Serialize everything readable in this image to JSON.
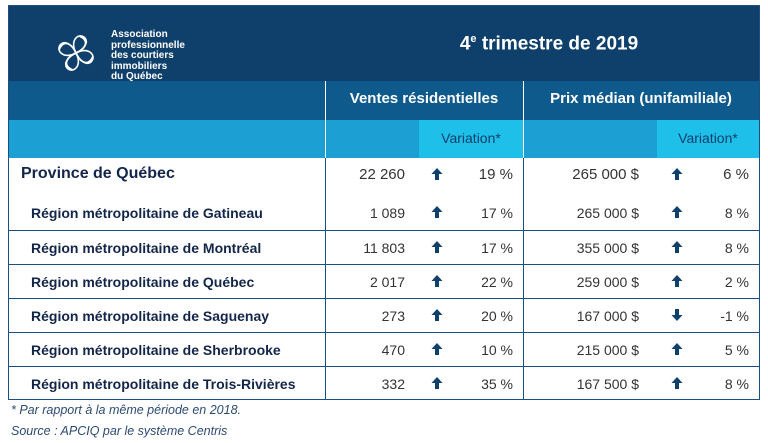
{
  "header": {
    "org_lines": [
      "Association",
      "professionnelle",
      "des courtiers",
      "immobiliers",
      "du Québec"
    ],
    "title_prefix": "4",
    "title_sup": "e",
    "title_rest": " trimestre de 2019"
  },
  "columns": {
    "sales_label": "Ventes résidentielles",
    "price_label": "Prix médian (unifamiliale)",
    "variation_label": "Variation*"
  },
  "rows": [
    {
      "label": "Province de Québec",
      "sales": "22 260",
      "sales_dir": "up",
      "sales_var": "19 %",
      "price": "265 000 $",
      "price_dir": "up",
      "price_var": "6 %"
    },
    {
      "label": "Région métropolitaine de Gatineau",
      "sales": "1 089",
      "sales_dir": "up",
      "sales_var": "17 %",
      "price": "265 000 $",
      "price_dir": "up",
      "price_var": "8 %"
    },
    {
      "label": "Région métropolitaine de Montréal",
      "sales": "11 803",
      "sales_dir": "up",
      "sales_var": "17 %",
      "price": "355 000 $",
      "price_dir": "up",
      "price_var": "8 %"
    },
    {
      "label": "Région métropolitaine de Québec",
      "sales": "2 017",
      "sales_dir": "up",
      "sales_var": "22 %",
      "price": "259 000 $",
      "price_dir": "up",
      "price_var": "2 %"
    },
    {
      "label": "Région métropolitaine de Saguenay",
      "sales": "273",
      "sales_dir": "up",
      "sales_var": "20 %",
      "price": "167 000 $",
      "price_dir": "down",
      "price_var": "-1 %"
    },
    {
      "label": "Région métropolitaine de Sherbrooke",
      "sales": "470",
      "sales_dir": "up",
      "sales_var": "10 %",
      "price": "215 000 $",
      "price_dir": "up",
      "price_var": "5 %"
    },
    {
      "label": "Région métropolitaine de Trois-Rivières",
      "sales": "332",
      "sales_dir": "up",
      "sales_var": "35 %",
      "price": "167 500 $",
      "price_dir": "up",
      "price_var": "8 %"
    }
  ],
  "footnotes": {
    "note": "* Par rapport à la même période en 2018.",
    "source": "Source : APCIQ par le système Centris"
  },
  "colors": {
    "navy": "#0f3f6b",
    "blue": "#0e5a8c",
    "cyan": "#1c9fd2",
    "highlight": "#1ec0ea"
  },
  "icons": {
    "up": "arrow-up-icon",
    "down": "arrow-down-icon",
    "logo": "flower-logo-icon"
  }
}
